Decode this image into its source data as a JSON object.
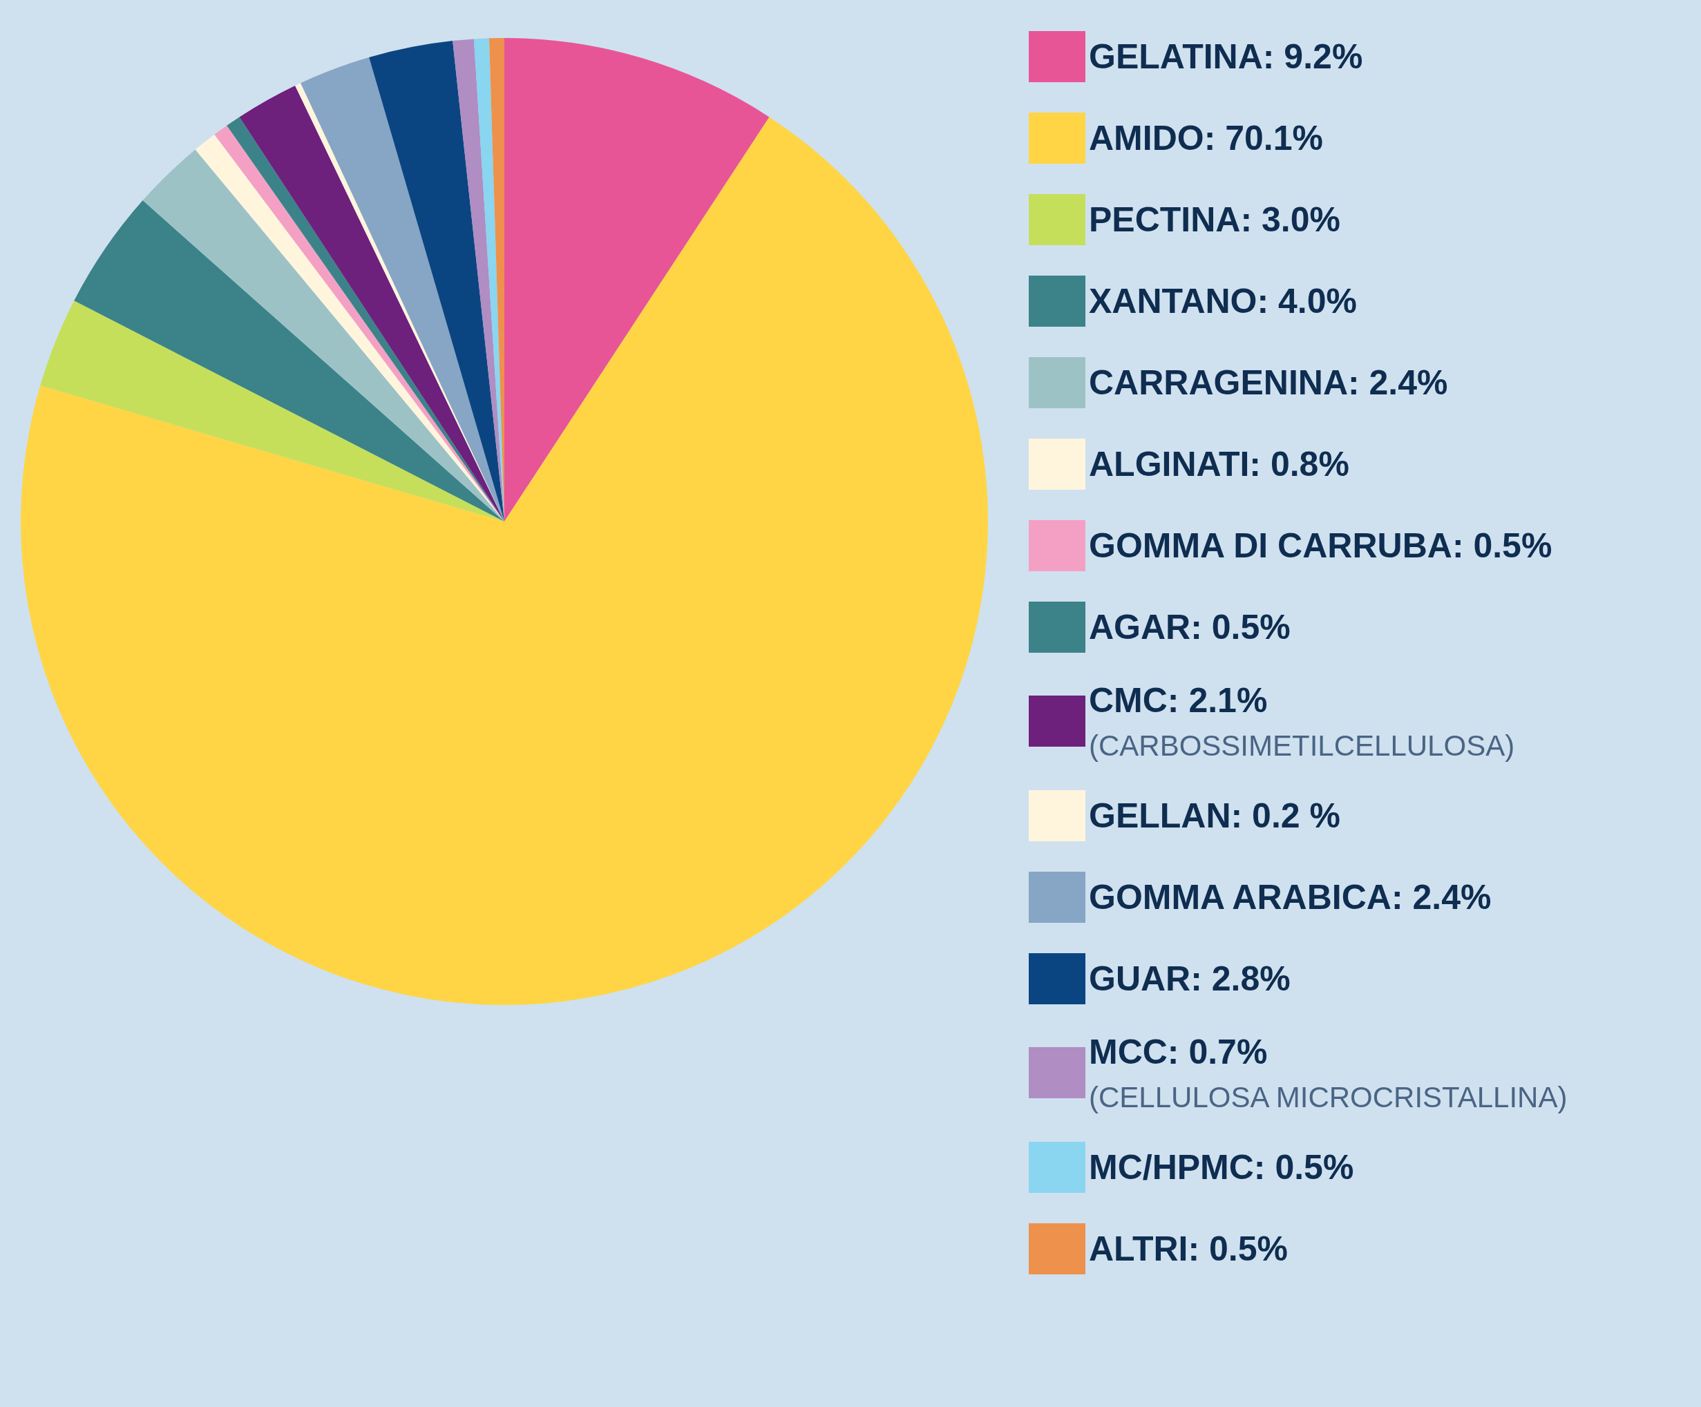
{
  "chart_data": {
    "type": "pie",
    "categories": [
      "GELATINA",
      "AMIDO",
      "PECTINA",
      "XANTANO",
      "CARRAGENINA",
      "ALGINATI",
      "GOMMA DI CARRUBA",
      "AGAR",
      "CMC",
      "GELLAN",
      "GOMMA ARABICA",
      "GUAR",
      "MCC",
      "MC/HPMC",
      "ALTRI"
    ],
    "values": [
      9.2,
      70.1,
      3.0,
      4.0,
      2.4,
      0.8,
      0.5,
      0.5,
      2.1,
      0.2,
      2.4,
      2.8,
      0.7,
      0.5,
      0.5
    ],
    "value_labels": [
      "9.2%",
      "70.1%",
      "3.0%",
      "4.0%",
      "2.4%",
      "0.8%",
      "0.5%",
      "0.5%",
      "2.1%",
      "0.2 %",
      "2.4%",
      "2.8%",
      "0.7%",
      "0.5%",
      "0.5%"
    ],
    "colors": [
      "#e85597",
      "#ffd545",
      "#c5df5a",
      "#3b8388",
      "#9dc2c6",
      "#fff5dd",
      "#f4a0c4",
      "#3b8388",
      "#6e207d",
      "#fff5dd",
      "#87a5c5",
      "#0b4581",
      "#b08dc2",
      "#8ad5ef",
      "#ee914c"
    ],
    "annotations": [
      {
        "text": "(CARBOSSIMETILCELLULOSA)",
        "x": "CMC"
      },
      {
        "text": "(CELLULOSA MICROCRISTALLINA)",
        "x": "MCC"
      }
    ],
    "legend": "right"
  }
}
